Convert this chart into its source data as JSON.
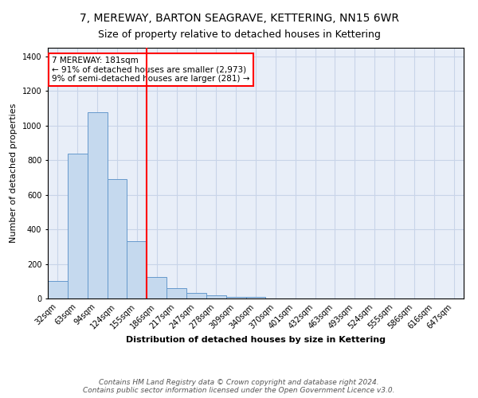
{
  "title": "7, MEREWAY, BARTON SEAGRAVE, KETTERING, NN15 6WR",
  "subtitle": "Size of property relative to detached houses in Kettering",
  "xlabel": "Distribution of detached houses by size in Kettering",
  "ylabel": "Number of detached properties",
  "categories": [
    "32sqm",
    "63sqm",
    "94sqm",
    "124sqm",
    "155sqm",
    "186sqm",
    "217sqm",
    "247sqm",
    "278sqm",
    "309sqm",
    "340sqm",
    "370sqm",
    "401sqm",
    "432sqm",
    "463sqm",
    "493sqm",
    "524sqm",
    "555sqm",
    "586sqm",
    "616sqm",
    "647sqm"
  ],
  "values": [
    100,
    840,
    1075,
    690,
    330,
    125,
    60,
    30,
    18,
    10,
    8,
    0,
    0,
    0,
    0,
    0,
    0,
    0,
    0,
    0,
    0
  ],
  "bar_color": "#c5d9ee",
  "bar_edge_color": "#6699cc",
  "vline_color": "red",
  "vline_index": 5,
  "annotation_text": "7 MEREWAY: 181sqm\n← 91% of detached houses are smaller (2,973)\n9% of semi-detached houses are larger (281) →",
  "annotation_box_color": "white",
  "annotation_box_edge_color": "red",
  "ylim": [
    0,
    1450
  ],
  "yticks": [
    0,
    200,
    400,
    600,
    800,
    1000,
    1200,
    1400
  ],
  "footnote1": "Contains HM Land Registry data © Crown copyright and database right 2024.",
  "footnote2": "Contains public sector information licensed under the Open Government Licence v3.0.",
  "grid_color": "#c8d4e8",
  "bg_color": "#e8eef8",
  "title_fontsize": 10,
  "axis_fontsize": 8,
  "tick_fontsize": 7,
  "annot_fontsize": 7.5
}
